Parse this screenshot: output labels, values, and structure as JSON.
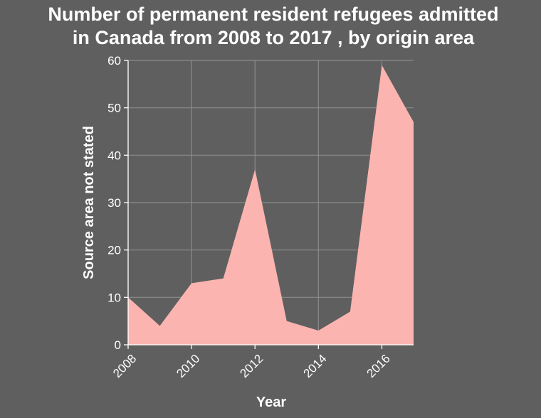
{
  "chart_data": {
    "type": "area",
    "title": "Number of permanent resident refugees admitted in Canada from 2008 to 2017 , by origin area",
    "title_lines": [
      "Number of permanent resident refugees admitted",
      "in Canada from 2008 to 2017 , by origin area"
    ],
    "xlabel": "Year",
    "ylabel": "Source area not stated",
    "x": [
      2008,
      2009,
      2010,
      2011,
      2012,
      2013,
      2014,
      2015,
      2016,
      2017
    ],
    "values": [
      10,
      4,
      13,
      14,
      37,
      5,
      3,
      7,
      59,
      47
    ],
    "xlim": [
      2008,
      2017
    ],
    "ylim": [
      0,
      60
    ],
    "xticks": [
      2008,
      2010,
      2012,
      2014,
      2016
    ],
    "yticks": [
      0,
      10,
      20,
      30,
      40,
      50,
      60
    ],
    "grid": true,
    "colors": {
      "fill": "#fbb4b0",
      "background": "#5f5f5f",
      "grid": "#8c8c8c",
      "text": "#ffffff"
    }
  }
}
